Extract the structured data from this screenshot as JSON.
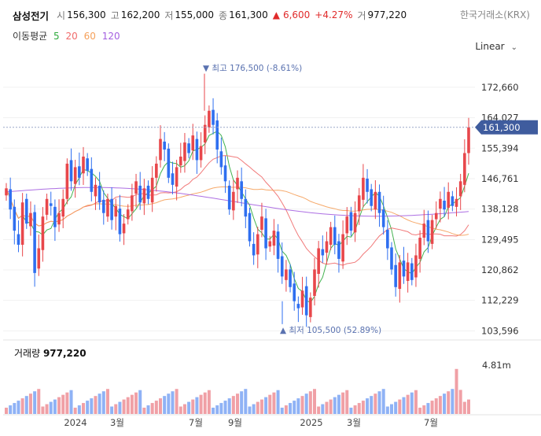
{
  "header": {
    "name": "삼성전기",
    "open_label": "시",
    "open": "156,300",
    "high_label": "고",
    "high": "162,200",
    "low_label": "저",
    "low": "155,000",
    "close_label": "종",
    "close": "161,300",
    "change_arrow": "▲",
    "change": "6,600",
    "change_pct": "+4.27%",
    "volume_label": "거",
    "volume": "977,220",
    "exchange": "한국거래소(KRX)"
  },
  "ma_legend": {
    "title": "이동평균",
    "items": [
      {
        "label": "5",
        "color": "#2eaa3c"
      },
      {
        "label": "20",
        "color": "#f06b6b"
      },
      {
        "label": "60",
        "color": "#f5a05a"
      },
      {
        "label": "120",
        "color": "#a45fe0"
      }
    ]
  },
  "scale_mode": "Linear",
  "annotations": {
    "max_text": "▼ 최고 176,500 (-8.61%)",
    "min_text": "▲ 최저 105,500 (52.89%)"
  },
  "price_axis": {
    "ticks": [
      "172,660",
      "164,027",
      "155,394",
      "146,761",
      "138,128",
      "129,495",
      "120,862",
      "112,229",
      "103,596"
    ],
    "current": "161,300"
  },
  "volume_panel": {
    "title": "거래량",
    "value": "977,220",
    "axis_label": "4.81m"
  },
  "time_axis": {
    "labels": [
      "2024",
      "3월",
      "7월",
      "9월",
      "2025",
      "3월",
      "7월"
    ]
  },
  "colors": {
    "up": "#e8474b",
    "down": "#2f6ff0",
    "vol_up": "#f0a0a6",
    "vol_down": "#8fb2f5",
    "tag": "#3f5c9e"
  },
  "chart_data": {
    "type": "candlestick",
    "ylim": [
      101000,
      180000
    ],
    "volume_max": 4810000,
    "series_note": "",
    "x_labels": [
      "2024",
      "3월",
      "7월",
      "9월",
      "2025",
      "3월",
      "7월"
    ],
    "closes": [
      144000,
      138000,
      132000,
      128000,
      140000,
      134000,
      137000,
      120000,
      127000,
      136000,
      141000,
      139000,
      133000,
      137000,
      141000,
      151000,
      146000,
      150000,
      147000,
      153000,
      149000,
      143000,
      145000,
      140000,
      137000,
      141000,
      135000,
      139000,
      131000,
      134000,
      138000,
      142000,
      146000,
      140000,
      144000,
      141000,
      147000,
      151000,
      158000,
      155000,
      147000,
      145000,
      150000,
      153000,
      157000,
      154000,
      159000,
      152000,
      156000,
      162000,
      166000,
      162000,
      155000,
      150000,
      146000,
      138000,
      143000,
      147000,
      141000,
      136000,
      129000,
      125000,
      131000,
      136000,
      127000,
      129000,
      132000,
      124000,
      119000,
      121000,
      116000,
      112000,
      110000,
      115000,
      108000,
      113000,
      121000,
      127000,
      125000,
      129000,
      133000,
      128000,
      124000,
      131000,
      136000,
      132000,
      137000,
      142000,
      147000,
      143000,
      139000,
      143000,
      137000,
      133000,
      127000,
      121000,
      116000,
      123000,
      119000,
      123000,
      118000,
      125000,
      130000,
      134000,
      129000,
      135000,
      137000,
      141000,
      138000,
      143000,
      139000,
      141000,
      146000,
      154000,
      161300
    ],
    "ma_note": "",
    "highs_note": "",
    "max_point": 176500,
    "min_point": 105500
  }
}
